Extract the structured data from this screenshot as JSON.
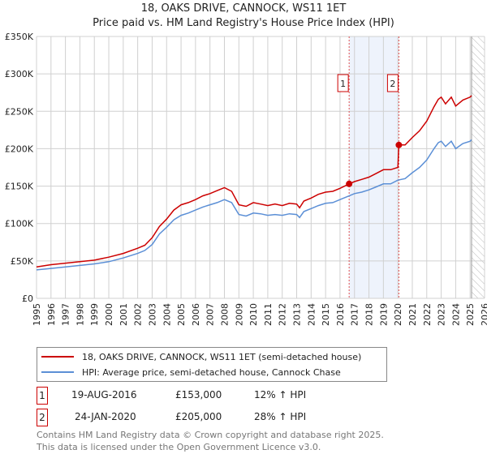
{
  "title_line1": "18, OAKS DRIVE, CANNOCK, WS11 1ET",
  "title_line2": "Price paid vs. HM Land Registry's House Price Index (HPI)",
  "colors": {
    "property": "#cc0000",
    "hpi": "#5b8fd6",
    "band": "#eef3fc",
    "marker_line": "#e05050"
  },
  "chart_data": {
    "type": "line",
    "xlim": [
      1995,
      2026
    ],
    "ylim": [
      0,
      350000
    ],
    "yticks": [
      0,
      50000,
      100000,
      150000,
      200000,
      250000,
      300000,
      350000
    ],
    "ytick_labels": [
      "£0",
      "£50K",
      "£100K",
      "£150K",
      "£200K",
      "£250K",
      "£300K",
      "£350K"
    ],
    "xticks": [
      1995,
      1996,
      1997,
      1998,
      1999,
      2000,
      2001,
      2002,
      2003,
      2004,
      2005,
      2006,
      2007,
      2008,
      2009,
      2010,
      2011,
      2012,
      2013,
      2014,
      2015,
      2016,
      2017,
      2018,
      2019,
      2020,
      2021,
      2022,
      2023,
      2024,
      2025,
      2026
    ],
    "grid": true,
    "shaded_range": [
      2016.63,
      2020.07
    ],
    "future_hatch_from": 2025.1,
    "series": [
      {
        "name": "18, OAKS DRIVE, CANNOCK, WS11 1ET (semi-detached house)",
        "color": "#cc0000",
        "x": [
          1995,
          1996,
          1997,
          1998,
          1999,
          2000,
          2001,
          2002,
          2002.5,
          2003,
          2003.5,
          2004,
          2004.5,
          2005,
          2005.5,
          2006,
          2006.5,
          2007,
          2007.5,
          2008,
          2008.5,
          2009,
          2009.5,
          2010,
          2010.5,
          2011,
          2011.5,
          2012,
          2012.5,
          2013,
          2013.2,
          2013.5,
          2014,
          2014.5,
          2015,
          2015.5,
          2016,
          2016.63,
          2017,
          2017.5,
          2018,
          2018.5,
          2019,
          2019.5,
          2020.0,
          2020.07,
          2020.5,
          2021,
          2021.5,
          2022,
          2022.5,
          2022.8,
          2023,
          2023.3,
          2023.7,
          2024,
          2024.5,
          2025,
          2025.1
        ],
        "y": [
          42000,
          45000,
          47000,
          49000,
          51000,
          55000,
          60000,
          67000,
          71000,
          81000,
          96000,
          106000,
          118000,
          125000,
          128000,
          132000,
          137000,
          140000,
          144000,
          148000,
          143000,
          125000,
          123000,
          128000,
          126000,
          124000,
          126000,
          124000,
          127000,
          126000,
          121000,
          130000,
          134000,
          139000,
          142000,
          143000,
          147000,
          153000,
          156000,
          159000,
          162000,
          167000,
          172000,
          172000,
          175000,
          205000,
          205000,
          215000,
          224000,
          237000,
          256000,
          266000,
          269000,
          260000,
          269000,
          257000,
          265000,
          269000,
          271000
        ]
      },
      {
        "name": "HPI: Average price, semi-detached house, Cannock Chase",
        "color": "#5b8fd6",
        "x": [
          1995,
          1996,
          1997,
          1998,
          1999,
          2000,
          2001,
          2002,
          2002.5,
          2003,
          2003.5,
          2004,
          2004.5,
          2005,
          2005.5,
          2006,
          2006.5,
          2007,
          2007.5,
          2008,
          2008.5,
          2009,
          2009.5,
          2010,
          2010.5,
          2011,
          2011.5,
          2012,
          2012.5,
          2013,
          2013.2,
          2013.5,
          2014,
          2014.5,
          2015,
          2015.5,
          2016,
          2016.63,
          2017,
          2017.5,
          2018,
          2018.5,
          2019,
          2019.5,
          2020,
          2020.5,
          2021,
          2021.5,
          2022,
          2022.5,
          2022.8,
          2023,
          2023.3,
          2023.7,
          2024,
          2024.5,
          2025,
          2025.1
        ],
        "y": [
          38000,
          40000,
          42000,
          44000,
          46000,
          49000,
          54000,
          60000,
          64000,
          72000,
          86000,
          95000,
          105000,
          111000,
          114000,
          118000,
          122000,
          125000,
          128000,
          132000,
          128000,
          112000,
          110000,
          114000,
          113000,
          111000,
          112000,
          111000,
          113000,
          112000,
          108000,
          116000,
          120000,
          124000,
          127000,
          128000,
          132000,
          137000,
          140000,
          142000,
          145000,
          149000,
          153000,
          153000,
          158000,
          160000,
          168000,
          175000,
          185000,
          200000,
          208000,
          210000,
          203000,
          210000,
          200000,
          207000,
          210000,
          212000
        ]
      }
    ],
    "annotations": [
      {
        "label": "1",
        "x": 2016.63,
        "y": 153000
      },
      {
        "label": "2",
        "x": 2020.07,
        "y": 205000
      }
    ]
  },
  "legend": {
    "property": "18, OAKS DRIVE, CANNOCK, WS11 1ET (semi-detached house)",
    "hpi": "HPI: Average price, semi-detached house, Cannock Chase"
  },
  "transactions": [
    {
      "num": "1",
      "date": "19-AUG-2016",
      "price": "£153,000",
      "delta": "12% ↑ HPI"
    },
    {
      "num": "2",
      "date": "24-JAN-2020",
      "price": "£205,000",
      "delta": "28% ↑ HPI"
    }
  ],
  "footer_line1": "Contains HM Land Registry data © Crown copyright and database right 2025.",
  "footer_line2": "This data is licensed under the Open Government Licence v3.0."
}
